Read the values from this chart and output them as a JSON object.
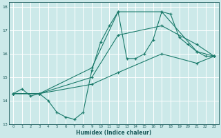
{
  "background_color": "#cce9e9",
  "grid_color": "#aad4d4",
  "line_color": "#1a7a6a",
  "xlabel": "Humidex (Indice chaleur)",
  "ylim": [
    13,
    18.2
  ],
  "xlim": [
    -0.5,
    23.5
  ],
  "yticks": [
    13,
    14,
    15,
    16,
    17,
    18
  ],
  "xticks": [
    0,
    1,
    2,
    3,
    4,
    5,
    6,
    7,
    8,
    9,
    10,
    11,
    12,
    13,
    14,
    15,
    16,
    17,
    18,
    19,
    20,
    21,
    22,
    23
  ],
  "curves": [
    {
      "x": [
        0,
        1,
        2,
        3,
        4,
        5,
        6,
        7,
        8,
        9,
        10,
        11,
        12,
        13,
        14,
        15,
        16,
        17,
        18,
        19,
        20,
        21,
        22,
        23
      ],
      "y": [
        14.3,
        14.5,
        14.2,
        14.3,
        14.0,
        13.5,
        13.3,
        13.2,
        13.5,
        15.3,
        16.5,
        17.2,
        17.8,
        15.8,
        15.8,
        16.0,
        16.6,
        17.8,
        17.7,
        16.7,
        16.4,
        16.1,
        15.9,
        15.9
      ]
    },
    {
      "x": [
        0,
        3,
        9,
        12,
        17,
        21,
        23
      ],
      "y": [
        14.3,
        14.3,
        15.4,
        17.8,
        17.8,
        16.1,
        15.9
      ]
    },
    {
      "x": [
        0,
        3,
        9,
        12,
        17,
        21,
        23
      ],
      "y": [
        14.3,
        14.3,
        15.0,
        16.8,
        17.2,
        16.4,
        15.9
      ]
    },
    {
      "x": [
        0,
        3,
        9,
        12,
        17,
        21,
        23
      ],
      "y": [
        14.3,
        14.3,
        14.7,
        15.2,
        16.0,
        15.6,
        15.9
      ]
    }
  ]
}
